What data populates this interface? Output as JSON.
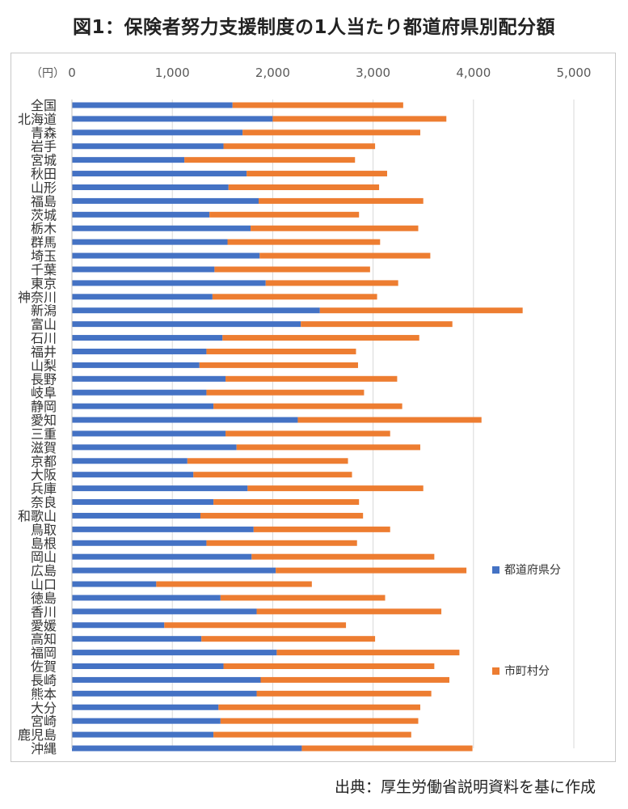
{
  "title": "図1：保険者努力支援制度の1人当たり都道府県別配分額",
  "source": "出典：厚生労働省説明資料を基に作成",
  "colors": {
    "prefecture": "#4472c4",
    "municipality": "#ed7d31",
    "grid": "#d9d9d9",
    "axis_text": "#595959"
  },
  "chart_data": {
    "type": "bar",
    "orientation": "horizontal",
    "stacked": true,
    "title": "",
    "unit_label": "（円）",
    "xlim": [
      0,
      5000
    ],
    "x_ticks": [
      "0",
      "1,000",
      "2,000",
      "3,000",
      "4,000",
      "5,000"
    ],
    "x_tick_values": [
      0,
      1000,
      2000,
      3000,
      4000,
      5000
    ],
    "grid": true,
    "legend_position": "right",
    "categories": [
      "全国",
      "北海道",
      "青森",
      "岩手",
      "宮城",
      "秋田",
      "山形",
      "福島",
      "茨城",
      "栃木",
      "群馬",
      "埼玉",
      "千葉",
      "東京",
      "神奈川",
      "新潟",
      "富山",
      "石川",
      "福井",
      "山梨",
      "長野",
      "岐阜",
      "静岡",
      "愛知",
      "三重",
      "滋賀",
      "京都",
      "大阪",
      "兵庫",
      "奈良",
      "和歌山",
      "鳥取",
      "島根",
      "岡山",
      "広島",
      "山口",
      "徳島",
      "香川",
      "愛媛",
      "高知",
      "福岡",
      "佐賀",
      "長崎",
      "熊本",
      "大分",
      "宮崎",
      "鹿児島",
      "沖縄"
    ],
    "series": [
      {
        "name": "都道府県分",
        "values": [
          1600,
          2000,
          1700,
          1510,
          1120,
          1740,
          1560,
          1860,
          1370,
          1780,
          1550,
          1870,
          1420,
          1930,
          1400,
          2470,
          2280,
          1500,
          1340,
          1270,
          1530,
          1340,
          1410,
          2250,
          1530,
          1640,
          1150,
          1210,
          1750,
          1410,
          1280,
          1810,
          1340,
          1790,
          2030,
          840,
          1480,
          1840,
          920,
          1290,
          2040,
          1510,
          1880,
          1840,
          1460,
          1480,
          1410,
          2290
        ]
      },
      {
        "name": "市町村分",
        "values": [
          1700,
          1730,
          1770,
          1510,
          1700,
          1400,
          1500,
          1640,
          1490,
          1670,
          1520,
          1700,
          1550,
          1320,
          1640,
          2020,
          1510,
          1960,
          1490,
          1580,
          1710,
          1570,
          1880,
          1830,
          1640,
          1830,
          1600,
          1580,
          1750,
          1450,
          1620,
          1360,
          1500,
          1820,
          1900,
          1550,
          1640,
          1840,
          1810,
          1730,
          1820,
          2100,
          1880,
          1740,
          2010,
          1970,
          1970,
          1700
        ]
      }
    ]
  }
}
